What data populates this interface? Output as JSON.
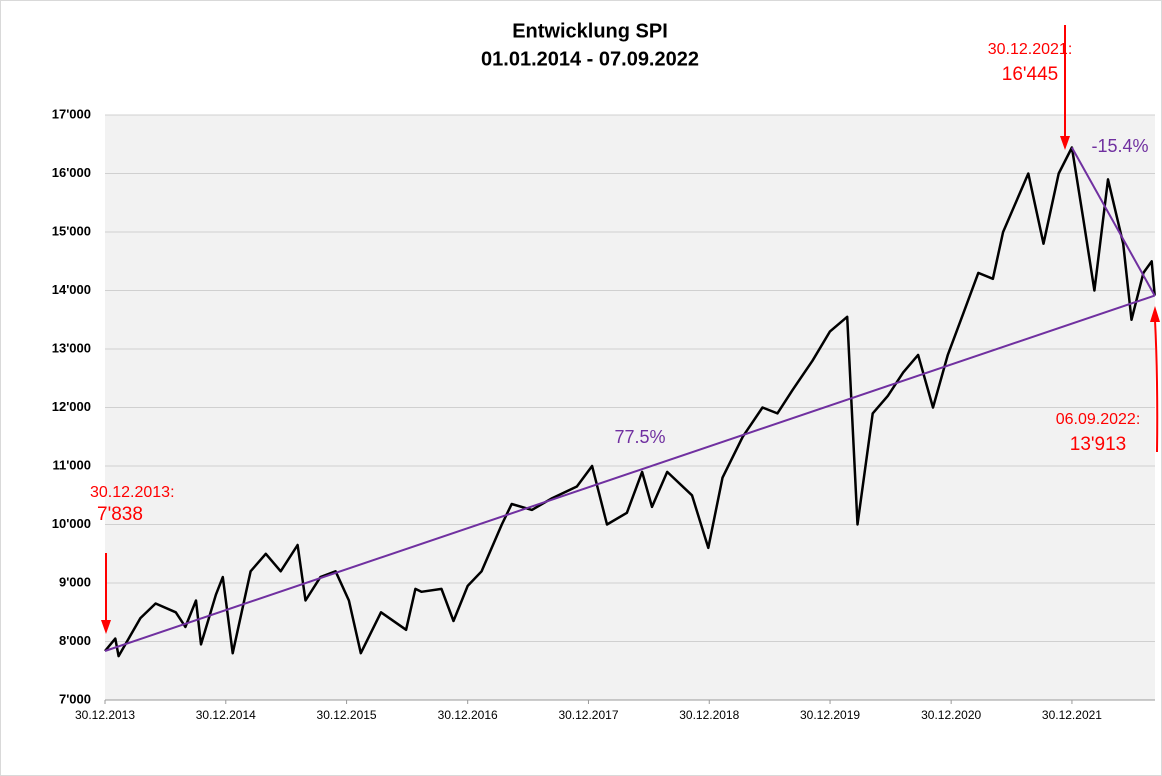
{
  "chart_data": {
    "type": "line",
    "title": "Entwicklung SPI",
    "subtitle": "01.01.2014 - 07.09.2022",
    "xlim": [
      "2013-12-30",
      "2022-09-07"
    ],
    "xticks": [
      {
        "value": "2013-12-30",
        "label": "30.12.2013"
      },
      {
        "value": "2014-12-30",
        "label": "30.12.2014"
      },
      {
        "value": "2015-12-30",
        "label": "30.12.2015"
      },
      {
        "value": "2016-12-30",
        "label": "30.12.2016"
      },
      {
        "value": "2017-12-30",
        "label": "30.12.2017"
      },
      {
        "value": "2018-12-30",
        "label": "30.12.2018"
      },
      {
        "value": "2019-12-30",
        "label": "30.12.2019"
      },
      {
        "value": "2020-12-30",
        "label": "30.12.2020"
      },
      {
        "value": "2021-12-30",
        "label": "30.12.2021"
      }
    ],
    "ylim": [
      7000,
      17000
    ],
    "yticks": [
      {
        "value": 7000,
        "label": "7'000"
      },
      {
        "value": 8000,
        "label": "8'000"
      },
      {
        "value": 9000,
        "label": "9'000"
      },
      {
        "value": 10000,
        "label": "10'000"
      },
      {
        "value": 11000,
        "label": "11'000"
      },
      {
        "value": 12000,
        "label": "12'000"
      },
      {
        "value": 13000,
        "label": "13'000"
      },
      {
        "value": 14000,
        "label": "14'000"
      },
      {
        "value": 15000,
        "label": "15'000"
      },
      {
        "value": 16000,
        "label": "16'000"
      },
      {
        "value": 17000,
        "label": "17'000"
      }
    ],
    "grid": true,
    "series": [
      {
        "color": "#000000",
        "x": [
          "2013-12-30",
          "2014-01-30",
          "2014-02-09",
          "2014-04-16",
          "2014-06-01",
          "2014-08-01",
          "2014-08-30",
          "2014-10-01",
          "2014-10-16",
          "2014-11-30",
          "2014-12-21",
          "2015-01-20",
          "2015-03-15",
          "2015-04-30",
          "2015-06-14",
          "2015-08-04",
          "2015-08-28",
          "2015-10-12",
          "2015-11-27",
          "2016-01-06",
          "2016-02-11",
          "2016-04-12",
          "2016-06-27",
          "2016-07-25",
          "2016-08-12",
          "2016-10-12",
          "2016-11-17",
          "2016-12-30",
          "2017-02-10",
          "2017-04-12",
          "2017-05-12",
          "2017-07-12",
          "2017-09-11",
          "2017-11-25",
          "2018-01-10",
          "2018-02-24",
          "2018-04-25",
          "2018-06-10",
          "2018-07-10",
          "2018-08-25",
          "2018-11-08",
          "2018-12-27",
          "2019-02-08",
          "2019-04-10",
          "2019-06-09",
          "2019-07-24",
          "2019-09-08",
          "2019-11-07",
          "2019-12-30",
          "2020-02-20",
          "2020-03-22",
          "2020-05-07",
          "2020-06-22",
          "2020-08-07",
          "2020-09-21",
          "2020-11-05",
          "2020-12-20",
          "2021-02-04",
          "2021-03-22",
          "2021-05-05",
          "2021-06-05",
          "2021-08-20",
          "2021-10-05",
          "2021-11-20",
          "2021-12-30",
          "2022-02-03",
          "2022-03-08",
          "2022-04-18",
          "2022-06-03",
          "2022-06-28",
          "2022-08-03",
          "2022-08-28",
          "2022-09-06"
        ],
        "values": [
          7838,
          8050,
          7750,
          8400,
          8650,
          8500,
          8250,
          8700,
          7950,
          8800,
          9100,
          7800,
          9200,
          9500,
          9200,
          9650,
          8700,
          9100,
          9200,
          8700,
          7800,
          8500,
          8200,
          8900,
          8850,
          8900,
          8350,
          8950,
          9200,
          10000,
          10350,
          10250,
          10450,
          10650,
          11000,
          10000,
          10200,
          10900,
          10300,
          10900,
          10500,
          9600,
          10800,
          11500,
          12000,
          11900,
          12300,
          12800,
          13300,
          13550,
          10000,
          11900,
          12200,
          12600,
          12900,
          12000,
          12900,
          13600,
          14300,
          14200,
          15000,
          16000,
          14800,
          16000,
          16445,
          15200,
          14000,
          15900,
          14800,
          13500,
          14300,
          14500,
          13913
        ]
      },
      {
        "color": "#7030a0",
        "x": [
          "2013-12-30",
          "2022-09-06"
        ],
        "values": [
          7838,
          13913
        ]
      },
      {
        "color": "#7030a0",
        "x": [
          "2021-12-30",
          "2022-09-06"
        ],
        "values": [
          16445,
          13913
        ]
      }
    ],
    "annotations": [
      "30.12.2013:",
      "7'838",
      "30.12.2021:",
      "16'445",
      "06.09.2022:",
      "13'913",
      "77.5%",
      "-15.4%"
    ]
  }
}
